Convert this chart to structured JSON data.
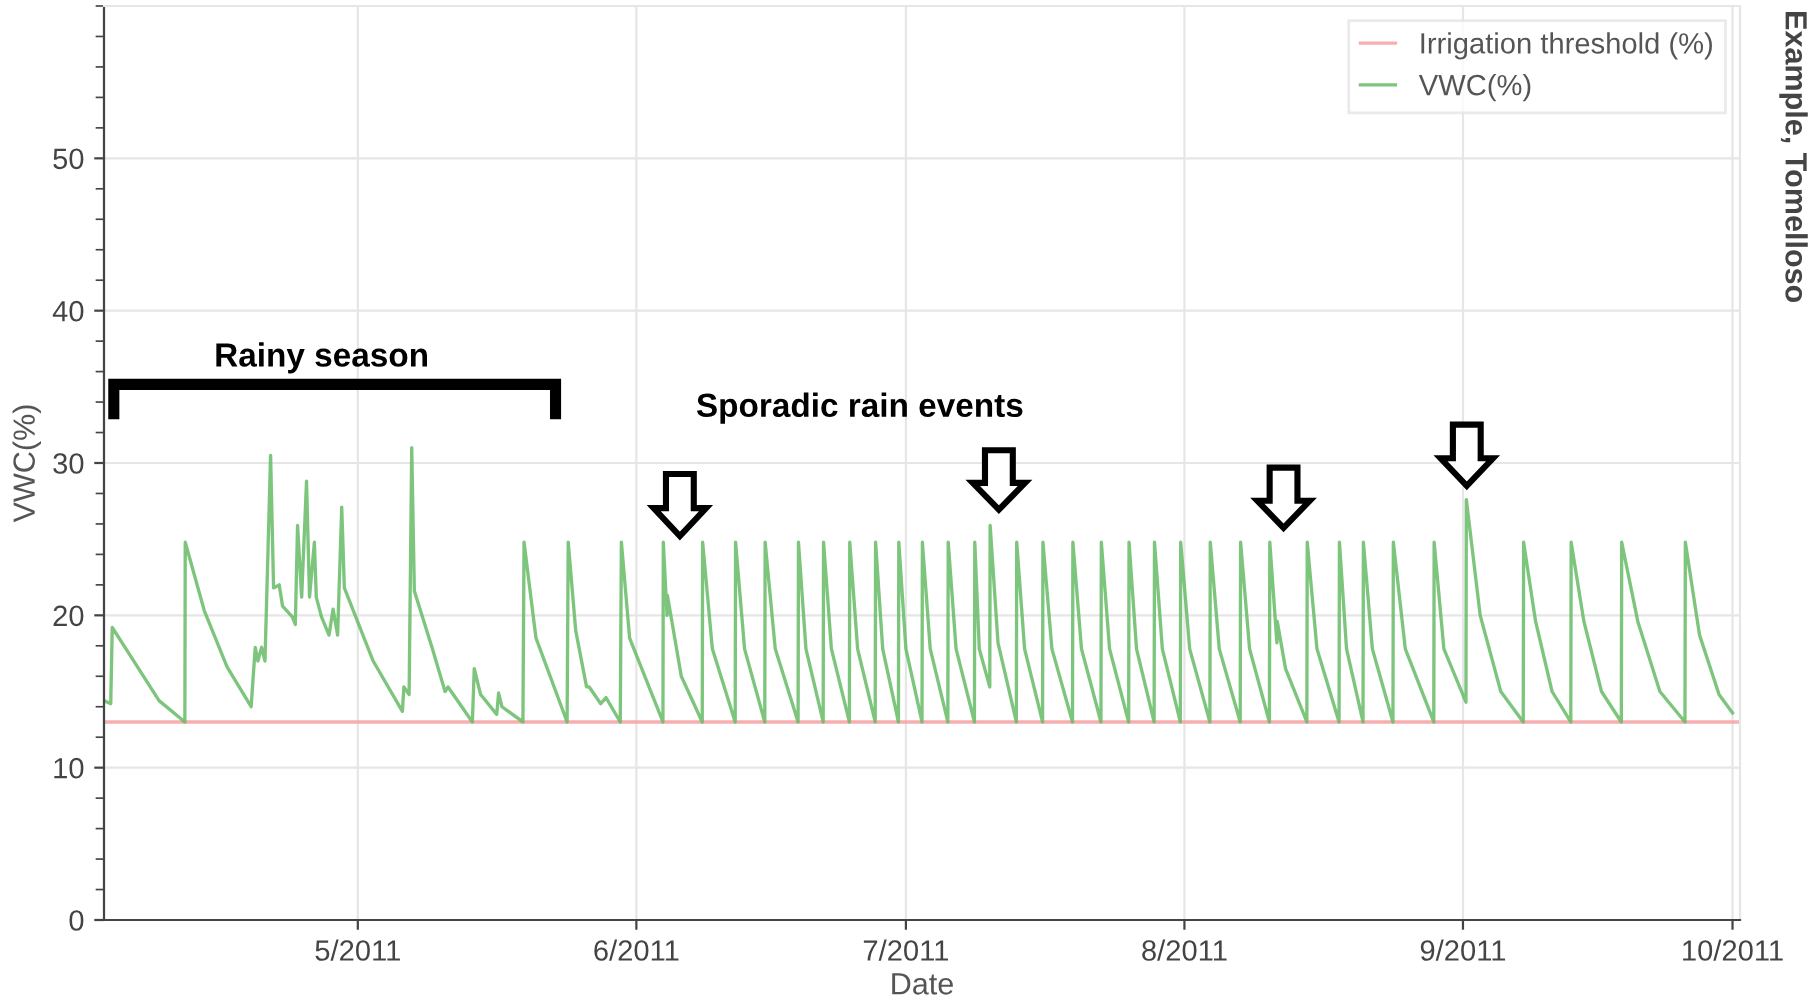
{
  "chart_data": {
    "type": "line",
    "title": "Example, Tomelloso",
    "xlabel": "Date",
    "ylabel": "VWC(%)",
    "xlim": [
      "2011-04-02T18:00",
      "2011-10-01T20:00"
    ],
    "ylim": [
      0,
      60
    ],
    "xticks": [
      {
        "value": "2011-05-01",
        "label": "5/2011"
      },
      {
        "value": "2011-06-01",
        "label": "6/2011"
      },
      {
        "value": "2011-07-01",
        "label": "7/2011"
      },
      {
        "value": "2011-08-01",
        "label": "8/2011"
      },
      {
        "value": "2011-09-01",
        "label": "9/2011"
      },
      {
        "value": "2011-10-01",
        "label": "10/2011"
      }
    ],
    "yticks": [
      0,
      10,
      20,
      30,
      40,
      50
    ],
    "grid": true,
    "legend": "top right",
    "annotations": [
      "Rainy season",
      "Sporadic rain events"
    ],
    "series": [
      {
        "name": "Irrigation threshold (%)",
        "color": "#f4a0a0",
        "x": [
          "2011-04-02T18:00",
          "2011-10-01T20:00"
        ],
        "values": [
          13,
          13
        ]
      },
      {
        "name": "VWC(%)",
        "color": "#66bb66",
        "x": [
          "2011-04-02T18:00",
          "2011-04-03T12:00",
          "2011-04-03T16:00",
          "2011-04-05T15:00",
          "2011-04-08T21:00",
          "2011-04-11T18:00",
          "2011-04-11T19:00",
          "2011-04-13T22:00",
          "2011-04-16T11:00",
          "2011-04-19T03:00",
          "2011-04-19T14:00",
          "2011-04-19T21:00",
          "2011-04-20T07:00",
          "2011-04-20T16:00",
          "2011-04-21T07:00",
          "2011-04-21T15:00",
          "2011-04-22T06:00",
          "2011-04-22T15:00",
          "2011-04-23T17:00",
          "2011-04-24T01:00",
          "2011-04-24T07:00",
          "2011-04-24T18:00",
          "2011-04-25T07:00",
          "2011-04-25T15:00",
          "2011-04-26T04:00",
          "2011-04-26T09:00",
          "2011-04-26T23:00",
          "2011-04-27T19:00",
          "2011-04-28T06:00",
          "2011-04-28T18:00",
          "2011-04-29T05:00",
          "2011-04-29T12:00",
          "2011-05-02T17:00",
          "2011-05-05T23:00",
          "2011-05-06T03:00",
          "2011-05-06T17:00",
          "2011-05-07T00:00",
          "2011-05-07T07:00",
          "2011-05-09T06:00",
          "2011-05-10T17:00",
          "2011-05-11T01:00",
          "2011-05-13T18:00",
          "2011-05-13T23:00",
          "2011-05-14T16:00",
          "2011-05-16T11:00",
          "2011-05-16T16:00",
          "2011-05-17T01:00",
          "2011-05-19T09:00",
          "2011-05-19T12:00",
          "2011-05-20T20:00",
          "2011-05-24T07:00",
          "2011-05-24T10:00",
          "2011-05-25T06:00",
          "2011-05-26T11:00",
          "2011-05-26T18:00",
          "2011-05-28T01:00",
          "2011-05-28T15:00",
          "2011-05-30T05:00",
          "2011-05-30T08:00",
          "2011-05-31T06:00",
          "2011-06-03T23:00",
          "2011-06-04T00:00",
          "2011-06-04T10:00",
          "2011-06-04T11:00",
          "2011-06-06T00:00",
          "2011-06-08T08:00",
          "2011-06-08T09:00",
          "2011-06-09T11:00",
          "2011-06-12T00:00",
          "2011-06-12T01:00",
          "2011-06-13T01:00",
          "2011-06-15T07:00",
          "2011-06-15T08:00",
          "2011-06-16T11:00",
          "2011-06-19T00:00",
          "2011-06-19T01:00",
          "2011-06-19T21:00",
          "2011-06-21T19:00",
          "2011-06-21T20:00",
          "2011-06-22T17:00",
          "2011-06-24T17:00",
          "2011-06-24T18:00",
          "2011-06-25T15:00",
          "2011-06-27T14:00",
          "2011-06-27T15:00",
          "2011-06-28T10:00",
          "2011-06-30T04:00",
          "2011-06-30T05:00",
          "2011-07-01T00:00",
          "2011-07-02T19:00",
          "2011-07-02T20:00",
          "2011-07-03T17:00",
          "2011-07-05T16:00",
          "2011-07-05T17:00",
          "2011-07-06T14:00",
          "2011-07-08T15:00",
          "2011-07-08T16:00",
          "2011-07-09T04:00",
          "2011-07-10T08:00",
          "2011-07-10T09:00",
          "2011-07-11T06:00",
          "2011-07-13T07:00",
          "2011-07-13T08:00",
          "2011-07-14T05:00",
          "2011-07-16T05:00",
          "2011-07-16T06:00",
          "2011-07-17T06:00",
          "2011-07-19T13:00",
          "2011-07-19T14:00",
          "2011-07-20T13:00",
          "2011-07-22T17:00",
          "2011-07-22T18:00",
          "2011-07-23T16:00",
          "2011-07-25T19:00",
          "2011-07-25T20:00",
          "2011-07-26T16:00",
          "2011-07-28T15:00",
          "2011-07-28T16:00",
          "2011-07-29T13:00",
          "2011-07-31T13:00",
          "2011-07-31T14:00",
          "2011-08-01T14:00",
          "2011-08-03T20:00",
          "2011-08-03T21:00",
          "2011-08-04T21:00",
          "2011-08-07T05:00",
          "2011-08-07T06:00",
          "2011-08-08T06:00",
          "2011-08-10T11:00",
          "2011-08-10T12:00",
          "2011-08-11T07:00",
          "2011-08-11T08:00",
          "2011-08-12T06:00",
          "2011-08-14T15:00",
          "2011-08-14T16:00",
          "2011-08-15T18:00",
          "2011-08-18T05:00",
          "2011-08-18T06:00",
          "2011-08-19T01:00",
          "2011-08-20T21:00",
          "2011-08-20T22:00",
          "2011-08-21T22:00",
          "2011-08-24T05:00",
          "2011-08-24T06:00",
          "2011-08-25T14:00",
          "2011-08-28T18:00",
          "2011-08-28T19:00",
          "2011-08-29T21:00",
          "2011-09-01T08:00",
          "2011-09-01T09:00",
          "2011-09-02T22:00",
          "2011-09-05T05:00",
          "2011-09-07T17:00",
          "2011-09-07T18:00",
          "2011-09-09T02:00",
          "2011-09-10T22:00",
          "2011-09-13T00:00",
          "2011-09-13T01:00",
          "2011-09-14T11:00",
          "2011-09-16T10:00",
          "2011-09-18T15:00",
          "2011-09-18T16:00",
          "2011-09-20T11:00",
          "2011-09-22T22:00",
          "2011-09-25T17:00",
          "2011-09-25T18:00",
          "2011-09-27T08:00",
          "2011-09-29T12:00",
          "2011-10-01T00:00"
        ],
        "values": [
          14.4,
          14.2,
          19.2,
          17.4,
          14.4,
          13.0,
          24.8,
          20.3,
          16.6,
          14.0,
          17.9,
          17.0,
          17.9,
          17.0,
          30.5,
          21.8,
          22.0,
          20.6,
          19.9,
          19.4,
          25.9,
          21.2,
          28.8,
          21.2,
          24.8,
          21.2,
          19.9,
          18.7,
          20.4,
          18.7,
          27.1,
          21.8,
          17.0,
          13.7,
          15.3,
          14.8,
          31.0,
          21.6,
          17.9,
          15.0,
          15.3,
          13.0,
          16.5,
          14.8,
          13.5,
          14.9,
          14.0,
          13.0,
          24.8,
          18.5,
          13.0,
          24.8,
          19.0,
          15.3,
          15.3,
          14.2,
          14.6,
          13.0,
          24.8,
          18.5,
          13.0,
          24.8,
          20.0,
          21.3,
          16.0,
          13.0,
          24.8,
          17.8,
          13.0,
          24.8,
          17.8,
          13.0,
          24.8,
          17.8,
          13.0,
          24.8,
          17.8,
          13.0,
          24.8,
          17.8,
          13.0,
          24.8,
          17.8,
          13.0,
          24.8,
          17.8,
          13.0,
          24.8,
          17.8,
          13.0,
          24.8,
          17.8,
          13.0,
          24.8,
          17.8,
          13.0,
          24.8,
          17.8,
          15.3,
          25.9,
          18.2,
          13.0,
          24.8,
          17.8,
          13.0,
          24.8,
          17.8,
          13.0,
          24.8,
          17.8,
          13.0,
          24.8,
          17.8,
          13.0,
          24.8,
          17.8,
          13.0,
          24.8,
          17.8,
          13.0,
          24.8,
          17.8,
          13.0,
          24.8,
          17.8,
          13.0,
          24.8,
          17.8,
          13.0,
          24.8,
          18.2,
          19.6,
          16.5,
          13.0,
          24.8,
          17.8,
          13.0,
          24.8,
          17.8,
          13.0,
          24.8,
          17.8,
          13.0,
          24.8,
          17.8,
          13.0,
          24.8,
          17.8,
          14.3,
          27.6,
          20.0,
          15.0,
          13.0,
          24.8,
          19.6,
          15.0,
          13.0,
          24.8,
          19.6,
          15.0,
          13.0,
          24.8,
          19.6,
          15.0,
          13.0,
          24.8,
          18.7,
          14.8,
          13.6
        ]
      }
    ]
  }
}
